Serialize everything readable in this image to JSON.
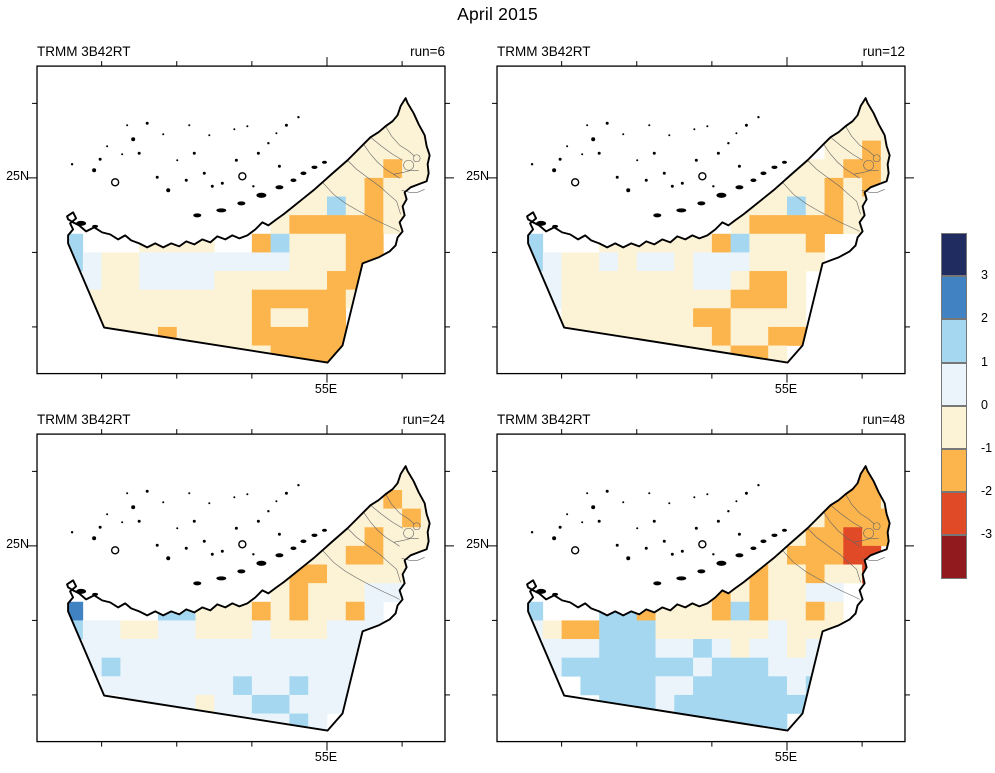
{
  "title": "April 2015",
  "chart_data": {
    "type": "heatmap",
    "subtype": "gridded-standardized-anomaly-maps",
    "map_region": "United Arab Emirates",
    "cell_size_deg": 0.25,
    "lon_axis": {
      "tick_label": "55E",
      "visible_range": [
        51.14,
        56.57
      ],
      "ticks_every_deg": 1
    },
    "lat_axis": {
      "tick_label": "25N",
      "visible_range": [
        22.37,
        26.5
      ],
      "ticks_every_deg": 1
    },
    "colorbar": {
      "tick_labels": [
        "3",
        "2",
        "1",
        "0",
        "-1",
        "-2",
        "-3"
      ],
      "colors": [
        "#202c60",
        "#4182c2",
        "#a5d8f0",
        "#eaf4fa",
        "#fcf3d6",
        "#fcb44c",
        "#e04a26",
        "#911a1e"
      ]
    },
    "class_codes": {
      "n": "> 3",
      "b": "2 to 3",
      "l": "1 to 2",
      "p": "0 to 1",
      "c": "-1 to 0",
      "o": "-2 to -1",
      "r": "-3 to -2",
      "d": "< -3",
      ".": "no data"
    },
    "panels": [
      {
        "label": "TRMM 3B42RT",
        "run": "run=6",
        "ytick_label": "25N",
        "xtick_label": "55E",
        "grid": [
          "...................c.",
          "..................cc.",
          "..................cc.",
          ".................cccc",
          "................ccccc",
          "...............cccocc",
          "..............cccoccc",
          "............ccclcocc.",
          "............coooooc..",
          ".l...cccc..olcccoo...",
          ".lpccppppppppcccoo...",
          "..pccppppccccccoo....",
          "..cccccccccoooooc....",
          "..cccccccccoccoo.....",
          "...cccoccccooooo.....",
          "........ccccoooo.....",
          "....................."
        ]
      },
      {
        "label": "TRMM 3B42RT",
        "run": "run=12",
        "ytick_label": "25N",
        "xtick_label": "55E",
        "grid": [
          "...................c.",
          "..................cc.",
          "..................cc.",
          ".................cccc",
          ".................ccoc",
          "...............cccooc",
          "..............cccococ",
          "............ccclcocc.",
          "............coooooc..",
          ".l...ccccccolccco....",
          ".lpccpcppcpppcccc....",
          "..pcccccccppcooc.....",
          "..pcccccccccoooc.....",
          "...cccccccoocccc.....",
          "...ccccccccoccoo.....",
          "........ccccooc......",
          "....................."
        ]
      },
      {
        "label": "TRMM 3B42RT",
        "run": "run=24",
        "ytick_label": "25N",
        "xtick_label": "55E",
        "grid": [
          "...................c.",
          "..................cc.",
          "..................cc.",
          ".................cocc",
          "................cccoc",
          "...............ccoccc",
          "..............ccooccc",
          "............cooccccc.",
          "............cocccpp..",
          ".b....llcccococcop...",
          ".lppccppcccpcccppp...",
          "..pppppppppppppppp...",
          "..plppppppppppppp....",
          "...ppppppplpplppp....",
          "....ppppcppllppp.....",
          "......pccpppplp......",
          "....................."
        ]
      },
      {
        "label": "TRMM 3B42RT",
        "run": "run=48",
        "ytick_label": "25N",
        "xtick_label": "55E",
        "grid": [
          "...................o.",
          "..................oo.",
          "..................oo.",
          ".................oooc",
          "................coooo",
          "...............cooroo",
          "..............cooorr.",
          "............coccoccr.",
          "...........ococcpp...",
          ".l...llocccoloccoc...",
          ".pcoolllccccccpccc...",
          "..ppplllpplpcppcp....",
          "..plllllllplllppp....",
          "....llllpplllllpl....",
          ".....lllplllllll.....",
          "......lllllllll......",
          "....................."
        ]
      }
    ]
  }
}
